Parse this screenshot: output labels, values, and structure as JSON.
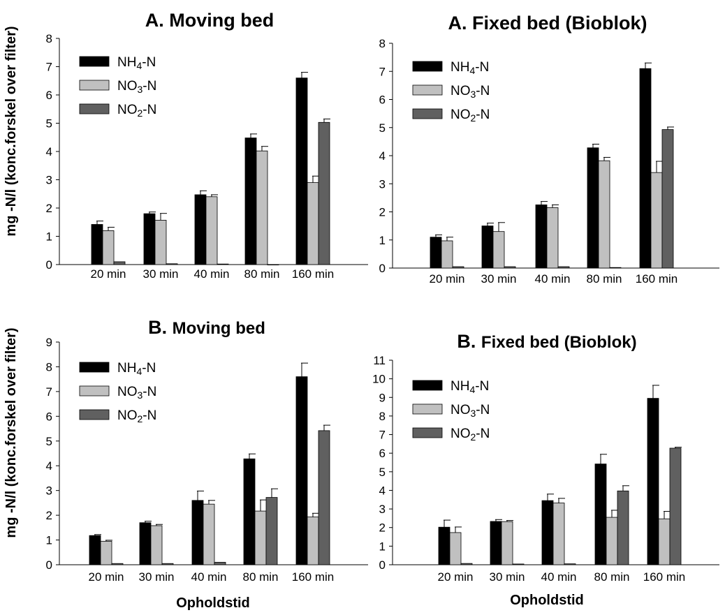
{
  "ylabel": "mg -N/l (konc.forskel over filter)",
  "chart_data": [
    {
      "type": "bar",
      "title_prefix": "A.",
      "title_main": "Moving bed",
      "title": "A. Moving bed",
      "xlabel": "",
      "ylabel": "mg -N/l (konc.forskel over filter)",
      "ylim": [
        0,
        8
      ],
      "yticks": [
        0,
        1,
        2,
        3,
        4,
        5,
        6,
        7,
        8
      ],
      "categories": [
        "20 min",
        "30 min",
        "40 min",
        "80 min",
        "160 min"
      ],
      "series": [
        {
          "name": "NH4-N",
          "name_base": "NH",
          "name_sub": "4",
          "name_suffix": "-N",
          "color": "#000000",
          "values": [
            1.42,
            1.8,
            2.47,
            4.48,
            6.6
          ],
          "errors": [
            0.12,
            0.06,
            0.14,
            0.14,
            0.2
          ]
        },
        {
          "name": "NO3-N",
          "name_base": "NO",
          "name_sub": "3",
          "name_suffix": "-N",
          "color": "#c0c0c0",
          "values": [
            1.2,
            1.57,
            2.4,
            4.02,
            2.9
          ],
          "errors": [
            0.12,
            0.24,
            0.07,
            0.16,
            0.23
          ]
        },
        {
          "name": "NO2-N",
          "name_base": "NO",
          "name_sub": "2",
          "name_suffix": "-N",
          "color": "#606060",
          "values": [
            0.1,
            0.03,
            0.02,
            0.0,
            5.03
          ],
          "errors": [
            0.0,
            0.0,
            0.0,
            0.0,
            0.12
          ]
        }
      ],
      "legend": "top-left"
    },
    {
      "type": "bar",
      "title_prefix": "A.",
      "title_main": "Fixed bed (Bioblok)",
      "title": "A. Fixed bed (Bioblok)",
      "xlabel": "",
      "ylabel": "",
      "ylim": [
        0,
        8
      ],
      "yticks": [
        0,
        1,
        2,
        3,
        4,
        5,
        6,
        7,
        8
      ],
      "categories": [
        "20 min",
        "30 min",
        "40 min",
        "80 min",
        "160 min"
      ],
      "series": [
        {
          "name": "NH4-N",
          "name_base": "NH",
          "name_sub": "4",
          "name_suffix": "-N",
          "color": "#000000",
          "values": [
            1.1,
            1.5,
            2.25,
            4.28,
            7.1
          ],
          "errors": [
            0.08,
            0.1,
            0.12,
            0.13,
            0.2
          ]
        },
        {
          "name": "NO3-N",
          "name_base": "NO",
          "name_sub": "3",
          "name_suffix": "-N",
          "color": "#c0c0c0",
          "values": [
            0.97,
            1.3,
            2.15,
            3.82,
            3.4
          ],
          "errors": [
            0.13,
            0.32,
            0.1,
            0.12,
            0.4
          ]
        },
        {
          "name": "NO2-N",
          "name_base": "NO",
          "name_sub": "2",
          "name_suffix": "-N",
          "color": "#606060",
          "values": [
            0.05,
            0.05,
            0.05,
            0.02,
            4.93
          ],
          "errors": [
            0.0,
            0.0,
            0.0,
            0.0,
            0.09
          ]
        }
      ],
      "legend": "top-left"
    },
    {
      "type": "bar",
      "title_prefix": "B.",
      "title_main": "Moving bed",
      "title": "B. Moving bed",
      "xlabel": "Opholdstid",
      "ylabel": "mg -N/l (konc.forskel over filter)",
      "ylim": [
        0,
        9
      ],
      "yticks": [
        0,
        1,
        2,
        3,
        4,
        5,
        6,
        7,
        8,
        9
      ],
      "categories": [
        "20 min",
        "30 min",
        "40 min",
        "80 min",
        "160 min"
      ],
      "series": [
        {
          "name": "NH4-N",
          "name_base": "NH",
          "name_sub": "4",
          "name_suffix": "-N",
          "color": "#000000",
          "values": [
            1.18,
            1.7,
            2.6,
            4.28,
            7.6
          ],
          "errors": [
            0.04,
            0.06,
            0.38,
            0.2,
            0.55
          ]
        },
        {
          "name": "NO3-N",
          "name_base": "NO",
          "name_sub": "3",
          "name_suffix": "-N",
          "color": "#c0c0c0",
          "values": [
            0.95,
            1.58,
            2.45,
            2.17,
            1.93
          ],
          "errors": [
            0.04,
            0.05,
            0.15,
            0.45,
            0.15
          ]
        },
        {
          "name": "NO2-N",
          "name_base": "NO",
          "name_sub": "2",
          "name_suffix": "-N",
          "color": "#606060",
          "values": [
            0.05,
            0.05,
            0.1,
            2.72,
            5.42
          ],
          "errors": [
            0.0,
            0.0,
            0.0,
            0.35,
            0.22
          ]
        }
      ],
      "legend": "top-left"
    },
    {
      "type": "bar",
      "title_prefix": "B.",
      "title_main": "Fixed bed (Bioblok)",
      "title": "B. Fixed bed (Bioblok)",
      "xlabel": "Opholdstid",
      "ylabel": "",
      "ylim": [
        0,
        11
      ],
      "yticks": [
        0,
        1,
        2,
        3,
        4,
        5,
        6,
        7,
        8,
        9,
        10,
        11
      ],
      "categories": [
        "20 min",
        "30 min",
        "40 min",
        "80 min",
        "160 min"
      ],
      "series": [
        {
          "name": "NH4-N",
          "name_base": "NH",
          "name_sub": "4",
          "name_suffix": "-N",
          "color": "#000000",
          "values": [
            2.02,
            2.33,
            3.45,
            5.42,
            8.95
          ],
          "errors": [
            0.38,
            0.1,
            0.35,
            0.52,
            0.7
          ]
        },
        {
          "name": "NO3-N",
          "name_base": "NO",
          "name_sub": "3",
          "name_suffix": "-N",
          "color": "#c0c0c0",
          "values": [
            1.73,
            2.32,
            3.32,
            2.55,
            2.47
          ],
          "errors": [
            0.3,
            0.06,
            0.25,
            0.38,
            0.4
          ]
        },
        {
          "name": "NO2-N",
          "name_base": "NO",
          "name_sub": "2",
          "name_suffix": "-N",
          "color": "#606060",
          "values": [
            0.07,
            0.04,
            0.05,
            3.97,
            6.27
          ],
          "errors": [
            0.0,
            0.0,
            0.0,
            0.28,
            0.05
          ]
        }
      ],
      "legend": "top-left"
    }
  ]
}
